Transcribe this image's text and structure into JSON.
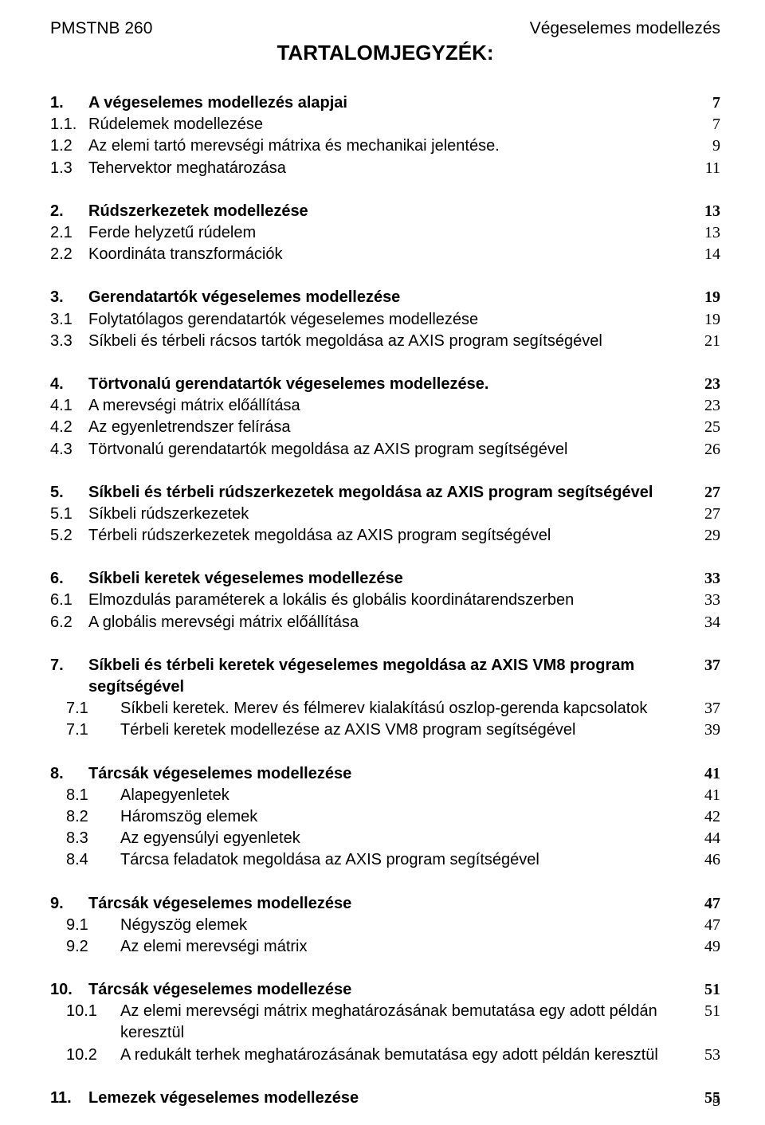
{
  "header": {
    "left": "PMSTNB 260",
    "right": "Végeselemes modellezés"
  },
  "title": "TARTALOMJEGYZÉK:",
  "page_number": "5",
  "toc": [
    {
      "type": "main",
      "num": "1.",
      "title": "A végeselemes modellezés alapjai",
      "page": "7"
    },
    {
      "type": "sub",
      "num": "1.1.",
      "title": "Rúdelemek modellezése",
      "page": "7"
    },
    {
      "type": "sub",
      "num": "1.2",
      "title": "Az elemi tartó merevségi mátrixa és mechanikai jelentése.",
      "page": "9"
    },
    {
      "type": "sub",
      "num": "1.3",
      "title": "Tehervektor meghatározása",
      "page": "11"
    },
    {
      "type": "gap"
    },
    {
      "type": "main",
      "num": "2.",
      "title": "Rúdszerkezetek modellezése",
      "page": "13"
    },
    {
      "type": "sub",
      "num": "2.1",
      "title": "Ferde helyzetű rúdelem",
      "page": "13"
    },
    {
      "type": "sub",
      "num": "2.2",
      "title": "Koordináta transzformációk",
      "page": "14"
    },
    {
      "type": "gap"
    },
    {
      "type": "main",
      "num": "3.",
      "title": "Gerendatartók végeselemes modellezése",
      "page": "19"
    },
    {
      "type": "sub",
      "num": "3.1",
      "title": "Folytatólagos gerendatartók végeselemes modellezése",
      "page": "19"
    },
    {
      "type": "sub",
      "num": "3.3",
      "title": "Síkbeli és térbeli rácsos tartók megoldása az AXIS program segítségével",
      "page": "21"
    },
    {
      "type": "gap"
    },
    {
      "type": "main",
      "num": "4.",
      "title": "Törtvonalú gerendatartók végeselemes modellezése.",
      "page": "23"
    },
    {
      "type": "sub",
      "num": "4.1",
      "title": "A merevségi mátrix előállítása",
      "page": "23"
    },
    {
      "type": "sub",
      "num": "4.2",
      "title": "Az egyenletrendszer felírása",
      "page": "25"
    },
    {
      "type": "sub",
      "num": "4.3",
      "title": "Törtvonalú gerendatartók megoldása az AXIS program segítségével",
      "page": "26"
    },
    {
      "type": "gap"
    },
    {
      "type": "main",
      "num": "5.",
      "title": "Síkbeli és térbeli rúdszerkezetek megoldása az AXIS program segítségével",
      "page": "27"
    },
    {
      "type": "sub",
      "num": "5.1",
      "title": "Síkbeli rúdszerkezetek",
      "page": "27"
    },
    {
      "type": "sub",
      "num": "5.2",
      "title": "Térbeli rúdszerkezetek megoldása az AXIS program segítségével",
      "page": "29"
    },
    {
      "type": "gap"
    },
    {
      "type": "main",
      "num": "6.",
      "title": "Síkbeli keretek végeselemes modellezése",
      "page": "33"
    },
    {
      "type": "sub",
      "num": "6.1",
      "title": "Elmozdulás paraméterek a lokális és globális koordinátarendszerben",
      "page": "33"
    },
    {
      "type": "sub",
      "num": "6.2",
      "title": "A globális merevségi mátrix előállítása",
      "page": "34"
    },
    {
      "type": "gap"
    },
    {
      "type": "main",
      "num": "7.",
      "title": "Síkbeli és térbeli keretek végeselemes megoldása az AXIS VM8 program segítségével",
      "page": "37"
    },
    {
      "type": "sub",
      "num": "7.1",
      "title": "Síkbeli keretek. Merev és félmerev kialakítású oszlop-gerenda kapcsolatok",
      "page": "37",
      "indent": true
    },
    {
      "type": "sub",
      "num": "7.1",
      "title": "Térbeli keretek modellezése az AXIS VM8 program segítségével",
      "page": "39",
      "indent": true
    },
    {
      "type": "gap"
    },
    {
      "type": "main",
      "num": "8.",
      "title": "Tárcsák végeselemes modellezése",
      "page": "41"
    },
    {
      "type": "sub",
      "num": "8.1",
      "title": "Alapegyenletek",
      "page": "41",
      "indent": true
    },
    {
      "type": "sub",
      "num": "8.2",
      "title": "Háromszög elemek",
      "page": "42",
      "indent": true
    },
    {
      "type": "sub",
      "num": "8.3",
      "title": "Az egyensúlyi egyenletek",
      "page": "44",
      "indent": true
    },
    {
      "type": "sub",
      "num": "8.4",
      "title": "Tárcsa feladatok megoldása az AXIS program segítségével",
      "page": "46",
      "indent": true
    },
    {
      "type": "gap"
    },
    {
      "type": "main",
      "num": "9.",
      "title": "Tárcsák végeselemes modellezése",
      "page": "47"
    },
    {
      "type": "sub",
      "num": "9.1",
      "title": "Négyszög elemek",
      "page": "47",
      "indent": true
    },
    {
      "type": "sub",
      "num": "9.2",
      "title": "Az elemi merevségi mátrix",
      "page": "49",
      "indent": true
    },
    {
      "type": "gap"
    },
    {
      "type": "main",
      "num": "10.",
      "title": "Tárcsák végeselemes modellezése",
      "page": "51"
    },
    {
      "type": "sub",
      "num": "10.1",
      "title": "Az elemi merevségi mátrix meghatározásának bemutatása egy adott példán keresztül",
      "page": "51",
      "indent": true
    },
    {
      "type": "sub",
      "num": "10.2",
      "title": "A redukált terhek meghatározásának bemutatása egy adott példán keresztül",
      "page": "53",
      "indent": true
    },
    {
      "type": "gap"
    },
    {
      "type": "main",
      "num": "11.",
      "title": "Lemezek végeselemes modellezése",
      "page": "55"
    }
  ]
}
